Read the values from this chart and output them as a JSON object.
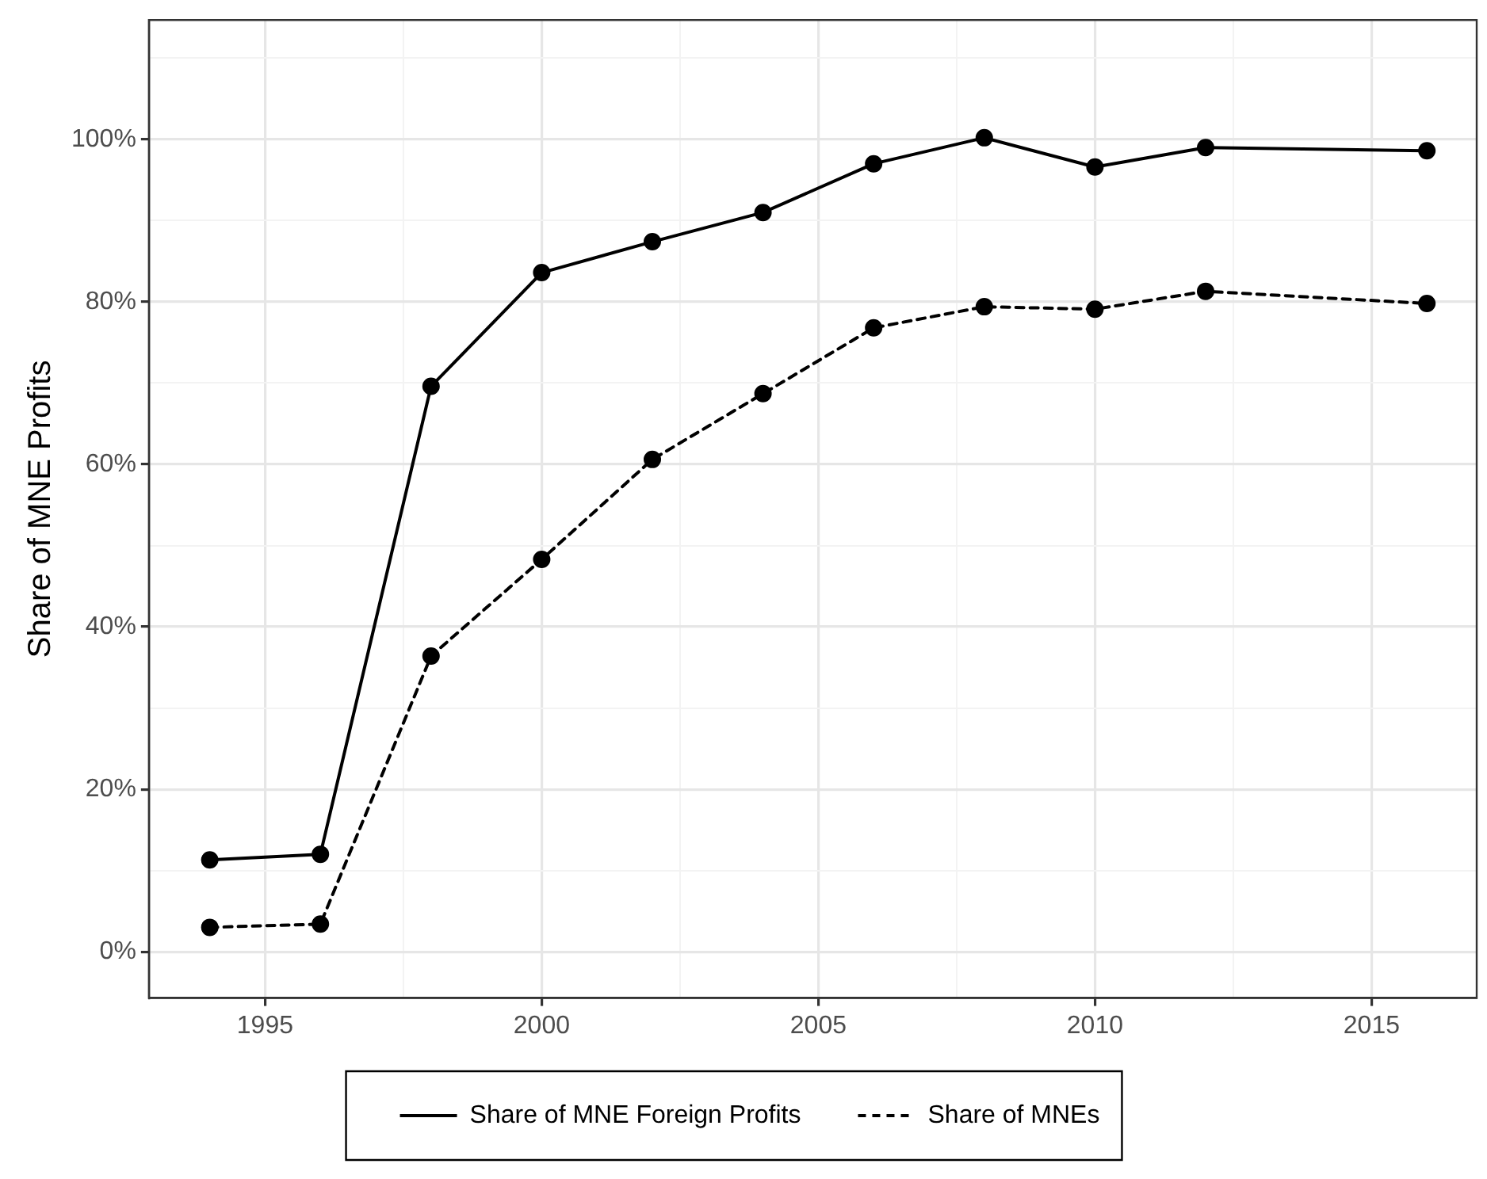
{
  "chart_data": {
    "type": "line",
    "ylabel": "Share of MNE Profits",
    "x": [
      1994,
      1996,
      1998,
      2000,
      2002,
      2004,
      2006,
      2008,
      2010,
      2012,
      2016
    ],
    "series": [
      {
        "name": "Share of MNE Foreign Profits",
        "color": "#000000",
        "line_style": "solid",
        "values": [
          11.3,
          12,
          69.6,
          83.6,
          87.4,
          91,
          97,
          100.2,
          96.6,
          99,
          98.6
        ]
      },
      {
        "name": "Share of MNEs",
        "color": "#000000",
        "line_style": "dashed",
        "values": [
          3,
          3.4,
          36.4,
          48.3,
          60.6,
          68.7,
          76.8,
          79.4,
          79.1,
          81.3,
          79.8
        ]
      }
    ],
    "xlim": [
      1992.9,
      2016.9
    ],
    "xticks": [
      {
        "value": 1997.5,
        "label": null
      },
      {
        "value": 2002.5,
        "label": null
      },
      {
        "value": 2007.5,
        "label": null
      },
      {
        "value": 2012.5,
        "label": null
      },
      1995,
      2000,
      2005,
      2010,
      2015
    ],
    "ylim": [
      -5.7,
      114.7
    ],
    "yticks": [
      {
        "value": 0,
        "label": "0%"
      },
      {
        "value": 10,
        "label": null
      },
      {
        "value": 20,
        "label": "20%"
      },
      {
        "value": 30,
        "label": null
      },
      {
        "value": 40,
        "label": "40%"
      },
      {
        "value": 50,
        "label": null
      },
      {
        "value": 60,
        "label": "60%"
      },
      {
        "value": 70,
        "label": null
      },
      {
        "value": 80,
        "label": "80%"
      },
      {
        "value": 90,
        "label": null
      },
      {
        "value": 100,
        "label": "100%"
      },
      {
        "value": 110,
        "label": null
      }
    ],
    "grid": true,
    "legend": "bottom",
    "marker": "circle"
  }
}
